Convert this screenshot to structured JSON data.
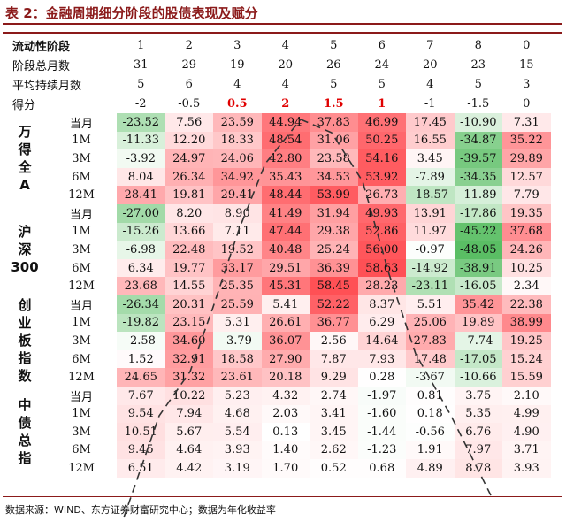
{
  "title": "表 2：金融周期细分阶段的股债表现及赋分",
  "header": {
    "row_labels": [
      "流动性阶段",
      "阶段总月数",
      "平均持续月数",
      "得分"
    ],
    "stage": [
      "1",
      "2",
      "3",
      "4",
      "5",
      "6",
      "7",
      "8",
      "0"
    ],
    "total_months": [
      "31",
      "29",
      "19",
      "20",
      "26",
      "24",
      "20",
      "23",
      "15"
    ],
    "avg_months": [
      "5",
      "6",
      "4",
      "4",
      "5",
      "5",
      "4",
      "5",
      "3"
    ],
    "score": [
      "-2",
      "-0.5",
      "0.5",
      "2",
      "1.5",
      "1",
      "-1",
      "-1.5",
      "0"
    ],
    "score_highlight": [
      false,
      false,
      true,
      true,
      true,
      true,
      false,
      false,
      false
    ]
  },
  "groups": [
    {
      "name": "万得全A",
      "periods": [
        "当月",
        "1M",
        "3M",
        "6M",
        "12M"
      ],
      "values": [
        [
          "-23.52",
          "7.56",
          "23.59",
          "44.94",
          "37.83",
          "46.99",
          "17.45",
          "-10.90",
          "7.31"
        ],
        [
          "-11.33",
          "12.20",
          "18.33",
          "48.54",
          "31.06",
          "50.25",
          "16.55",
          "-34.87",
          "35.22"
        ],
        [
          "-3.92",
          "24.97",
          "24.06",
          "42.80",
          "23.58",
          "54.16",
          "3.45",
          "-39.57",
          "29.89"
        ],
        [
          "8.04",
          "26.34",
          "34.92",
          "35.43",
          "34.53",
          "53.92",
          "-7.89",
          "-34.35",
          "12.57"
        ],
        [
          "28.41",
          "19.81",
          "29.41",
          "48.44",
          "53.99",
          "26.73",
          "-18.57",
          "-11.89",
          "7.79"
        ]
      ]
    },
    {
      "name": "沪深300",
      "periods": [
        "当月",
        "1M",
        "3M",
        "6M",
        "12M"
      ],
      "values": [
        [
          "-27.00",
          "8.20",
          "8.90",
          "41.49",
          "31.94",
          "49.93",
          "13.91",
          "-17.86",
          "19.35"
        ],
        [
          "-15.26",
          "13.66",
          "7.11",
          "47.44",
          "29.38",
          "52.86",
          "11.97",
          "-45.22",
          "37.68"
        ],
        [
          "-6.98",
          "22.48",
          "19.52",
          "40.48",
          "25.24",
          "56.00",
          "-0.97",
          "-48.05",
          "24.26"
        ],
        [
          "6.34",
          "19.77",
          "33.17",
          "29.51",
          "36.39",
          "58.63",
          "-14.92",
          "-38.91",
          "10.25"
        ],
        [
          "23.68",
          "14.55",
          "25.35",
          "45.31",
          "58.45",
          "28.23",
          "-23.11",
          "-16.05",
          "2.34"
        ]
      ]
    },
    {
      "name": "创业板指数",
      "periods": [
        "当月",
        "1M",
        "3M",
        "6M",
        "12M"
      ],
      "values": [
        [
          "-26.34",
          "20.31",
          "25.59",
          "5.41",
          "52.22",
          "8.37",
          "5.51",
          "35.42",
          "22.38"
        ],
        [
          "-19.82",
          "23.15",
          "5.31",
          "26.61",
          "36.77",
          "6.29",
          "25.06",
          "19.89",
          "38.99"
        ],
        [
          "-2.58",
          "34.60",
          "-3.79",
          "36.07",
          "2.56",
          "14.64",
          "27.83",
          "-7.74",
          "19.25"
        ],
        [
          "1.52",
          "32.91",
          "18.58",
          "27.90",
          "7.87",
          "7.93",
          "17.48",
          "-17.05",
          "15.24"
        ],
        [
          "24.65",
          "31.32",
          "23.61",
          "20.18",
          "9.29",
          "0.28",
          "-3.67",
          "-10.66",
          "15.59"
        ]
      ]
    },
    {
      "name": "中债总指",
      "periods": [
        "当月",
        "1M",
        "3M",
        "6M",
        "12M"
      ],
      "values": [
        [
          "7.67",
          "10.22",
          "5.23",
          "4.32",
          "2.74",
          "-1.97",
          "0.81",
          "3.75",
          "2.10"
        ],
        [
          "9.54",
          "7.94",
          "4.68",
          "2.03",
          "3.41",
          "-1.60",
          "0.18",
          "5.35",
          "4.99"
        ],
        [
          "10.51",
          "5.67",
          "5.54",
          "0.13",
          "3.45",
          "-1.44",
          "-0.56",
          "6.76",
          "4.90"
        ],
        [
          "9.45",
          "4.64",
          "3.93",
          "1.40",
          "2.62",
          "-1.23",
          "1.91",
          "7.97",
          "3.71"
        ],
        [
          "6.51",
          "4.42",
          "3.19",
          "1.70",
          "0.52",
          "0.68",
          "4.89",
          "8.78",
          "3.93"
        ]
      ]
    }
  ],
  "source": "数据来源：WIND、东方证券财富研究中心；数据为年化收益率"
}
